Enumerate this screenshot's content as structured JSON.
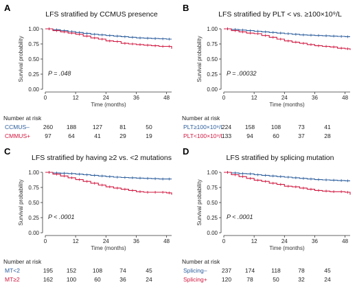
{
  "colors": {
    "series1": "#2b5d9c",
    "series2": "#d0173f",
    "axis": "#333333"
  },
  "chart_data": [
    {
      "type": "line",
      "panel_letter": "A",
      "title": "LFS stratified by CCMUS presence",
      "xlabel": "Time (months)",
      "ylabel": "Survival probability",
      "xlim": [
        0,
        50
      ],
      "ylim": [
        0,
        1
      ],
      "xticks": [
        0,
        12,
        24,
        36,
        48
      ],
      "yticks": [
        "0.00",
        "0.25",
        "0.50",
        "0.75",
        "1.00"
      ],
      "p_value": "P = .048",
      "series": [
        {
          "name": "CCMUS–",
          "color": "#2b5d9c",
          "x": [
            0,
            3,
            6,
            9,
            12,
            15,
            18,
            21,
            24,
            27,
            30,
            33,
            36,
            39,
            42,
            45,
            48,
            50
          ],
          "y": [
            1.0,
            0.985,
            0.97,
            0.955,
            0.94,
            0.925,
            0.91,
            0.9,
            0.89,
            0.88,
            0.87,
            0.86,
            0.85,
            0.845,
            0.84,
            0.835,
            0.83,
            0.83
          ]
        },
        {
          "name": "CMMUS+",
          "color": "#d0173f",
          "x": [
            0,
            3,
            6,
            9,
            12,
            15,
            18,
            21,
            24,
            27,
            30,
            33,
            36,
            39,
            42,
            45,
            48,
            50
          ],
          "y": [
            1.0,
            0.97,
            0.95,
            0.93,
            0.91,
            0.88,
            0.85,
            0.83,
            0.8,
            0.79,
            0.76,
            0.75,
            0.74,
            0.73,
            0.72,
            0.71,
            0.71,
            0.67
          ]
        }
      ],
      "risk_table": {
        "title": "Number at risk",
        "rows": [
          {
            "label": "CCMUS–",
            "values": [
              "260",
              "188",
              "127",
              "81",
              "50"
            ]
          },
          {
            "label": "CMMUS+",
            "values": [
              "97",
              "64",
              "41",
              "29",
              "19"
            ]
          }
        ]
      }
    },
    {
      "type": "line",
      "panel_letter": "B",
      "title": "LFS stratified by PLT < vs. ≥100×10⁹/L",
      "xlabel": "Time (months)",
      "ylabel": "Survival probability",
      "xlim": [
        0,
        50
      ],
      "ylim": [
        0,
        1
      ],
      "xticks": [
        0,
        12,
        24,
        36,
        48
      ],
      "yticks": [
        "0.00",
        "0.25",
        "0.50",
        "0.75",
        "1.00"
      ],
      "p_value": "P = .00032",
      "series": [
        {
          "name": "PLT≥100×10⁹/L",
          "color": "#2b5d9c",
          "x": [
            0,
            3,
            6,
            9,
            12,
            15,
            18,
            21,
            24,
            27,
            30,
            33,
            36,
            39,
            42,
            45,
            48,
            50
          ],
          "y": [
            1.0,
            0.99,
            0.98,
            0.97,
            0.96,
            0.95,
            0.94,
            0.93,
            0.92,
            0.91,
            0.9,
            0.895,
            0.89,
            0.885,
            0.88,
            0.875,
            0.87,
            0.87
          ]
        },
        {
          "name": "PLT<100×10⁹/L",
          "color": "#d0173f",
          "x": [
            0,
            3,
            6,
            9,
            12,
            15,
            18,
            21,
            24,
            27,
            30,
            33,
            36,
            39,
            42,
            45,
            48,
            50
          ],
          "y": [
            1.0,
            0.97,
            0.95,
            0.93,
            0.92,
            0.89,
            0.86,
            0.83,
            0.8,
            0.78,
            0.76,
            0.74,
            0.72,
            0.71,
            0.7,
            0.68,
            0.67,
            0.65
          ]
        }
      ],
      "risk_table": {
        "title": "Number at risk",
        "rows": [
          {
            "label": "PLT≥100×10⁹/L",
            "values": [
              "224",
              "158",
              "108",
              "73",
              "41"
            ]
          },
          {
            "label": "PLT<100×10⁹/L",
            "values": [
              "133",
              "94",
              "60",
              "37",
              "28"
            ]
          }
        ]
      }
    },
    {
      "type": "line",
      "panel_letter": "C",
      "title": "LFS stratified by having ≥2 vs. <2 mutations",
      "xlabel": "Time (months)",
      "ylabel": "Survival probability",
      "xlim": [
        0,
        50
      ],
      "ylim": [
        0,
        1
      ],
      "xticks": [
        0,
        12,
        24,
        36,
        48
      ],
      "yticks": [
        "0.00",
        "0.25",
        "0.50",
        "0.75",
        "1.00"
      ],
      "p_value": "P < .0001",
      "series": [
        {
          "name": "MT<2",
          "color": "#2b5d9c",
          "x": [
            0,
            3,
            6,
            9,
            12,
            15,
            18,
            21,
            24,
            27,
            30,
            33,
            36,
            39,
            42,
            45,
            48,
            50
          ],
          "y": [
            1.0,
            0.99,
            0.985,
            0.98,
            0.97,
            0.96,
            0.95,
            0.94,
            0.93,
            0.92,
            0.915,
            0.91,
            0.905,
            0.9,
            0.895,
            0.89,
            0.89,
            0.89
          ]
        },
        {
          "name": "MT≥2",
          "color": "#d0173f",
          "x": [
            0,
            3,
            6,
            9,
            12,
            15,
            18,
            21,
            24,
            27,
            30,
            33,
            36,
            39,
            42,
            45,
            48,
            50
          ],
          "y": [
            1.0,
            0.97,
            0.94,
            0.91,
            0.88,
            0.85,
            0.82,
            0.79,
            0.76,
            0.74,
            0.72,
            0.7,
            0.68,
            0.67,
            0.67,
            0.67,
            0.66,
            0.63
          ]
        }
      ],
      "risk_table": {
        "title": "Number at risk",
        "rows": [
          {
            "label": "MT<2",
            "values": [
              "195",
              "152",
              "108",
              "74",
              "45"
            ]
          },
          {
            "label": "MT≥2",
            "values": [
              "162",
              "100",
              "60",
              "36",
              "24"
            ]
          }
        ]
      }
    },
    {
      "type": "line",
      "panel_letter": "D",
      "title": "LFS stratified by splicing mutation",
      "xlabel": "Time (months)",
      "ylabel": "Survival probability",
      "xlim": [
        0,
        50
      ],
      "ylim": [
        0,
        1
      ],
      "xticks": [
        0,
        12,
        24,
        36,
        48
      ],
      "yticks": [
        "0.00",
        "0.25",
        "0.50",
        "0.75",
        "1.00"
      ],
      "p_value": "P < .0001",
      "series": [
        {
          "name": "Splicing–",
          "color": "#2b5d9c",
          "x": [
            0,
            3,
            6,
            9,
            12,
            15,
            18,
            21,
            24,
            27,
            30,
            33,
            36,
            39,
            42,
            45,
            48,
            50
          ],
          "y": [
            1.0,
            0.99,
            0.98,
            0.975,
            0.96,
            0.95,
            0.94,
            0.93,
            0.92,
            0.91,
            0.9,
            0.89,
            0.88,
            0.875,
            0.87,
            0.865,
            0.86,
            0.86
          ]
        },
        {
          "name": "Splicing+",
          "color": "#d0173f",
          "x": [
            0,
            3,
            6,
            9,
            12,
            15,
            18,
            21,
            24,
            27,
            30,
            33,
            36,
            39,
            42,
            45,
            48,
            50
          ],
          "y": [
            1.0,
            0.96,
            0.93,
            0.9,
            0.87,
            0.85,
            0.82,
            0.8,
            0.77,
            0.76,
            0.74,
            0.72,
            0.7,
            0.69,
            0.68,
            0.68,
            0.67,
            0.63
          ]
        }
      ],
      "risk_table": {
        "title": "Number at risk",
        "rows": [
          {
            "label": "Splicing–",
            "values": [
              "237",
              "174",
              "118",
              "78",
              "45"
            ]
          },
          {
            "label": "Splicing+",
            "values": [
              "120",
              "78",
              "50",
              "32",
              "24"
            ]
          }
        ]
      }
    }
  ]
}
